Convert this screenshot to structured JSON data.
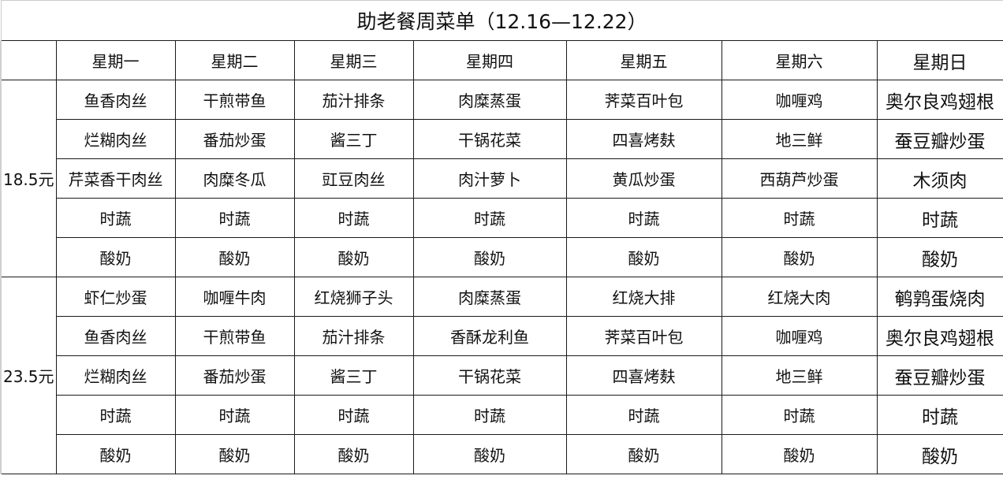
{
  "title": "助老餐周菜单（12.16—12.22）",
  "days": [
    "星期一",
    "星期二",
    "星期三",
    "星期四",
    "星期五",
    "星期六",
    "星期日"
  ],
  "sections": [
    {
      "price": "18.5元",
      "rows": [
        [
          "鱼香肉丝",
          "干煎带鱼",
          "茄汁排条",
          "肉糜蒸蛋",
          "荠菜百叶包",
          "咖喱鸡",
          "奥尔良鸡翅根"
        ],
        [
          "烂糊肉丝",
          "番茄炒蛋",
          "酱三丁",
          "干锅花菜",
          "四喜烤麸",
          "地三鲜",
          "蚕豆瓣炒蛋"
        ],
        [
          "芹菜香干肉丝",
          "肉糜冬瓜",
          "豇豆肉丝",
          "肉汁萝卜",
          "黄瓜炒蛋",
          "西葫芦炒蛋",
          "木须肉"
        ],
        [
          "时蔬",
          "时蔬",
          "时蔬",
          "时蔬",
          "时蔬",
          "时蔬",
          "时蔬"
        ],
        [
          "酸奶",
          "酸奶",
          "酸奶",
          "酸奶",
          "酸奶",
          "酸奶",
          "酸奶"
        ]
      ]
    },
    {
      "price": "23.5元",
      "rows": [
        [
          "虾仁炒蛋",
          "咖喱牛肉",
          "红烧狮子头",
          "肉糜蒸蛋",
          "红烧大排",
          "红烧大肉",
          "鹌鹑蛋烧肉"
        ],
        [
          "鱼香肉丝",
          "干煎带鱼",
          "茄汁排条",
          "香酥龙利鱼",
          "荠菜百叶包",
          "咖喱鸡",
          "奥尔良鸡翅根"
        ],
        [
          "烂糊肉丝",
          "番茄炒蛋",
          "酱三丁",
          "干锅花菜",
          "四喜烤麸",
          "地三鲜",
          "蚕豆瓣炒蛋"
        ],
        [
          "时蔬",
          "时蔬",
          "时蔬",
          "时蔬",
          "时蔬",
          "时蔬",
          "时蔬"
        ],
        [
          "酸奶",
          "酸奶",
          "酸奶",
          "酸奶",
          "酸奶",
          "酸奶",
          "酸奶"
        ]
      ]
    }
  ]
}
